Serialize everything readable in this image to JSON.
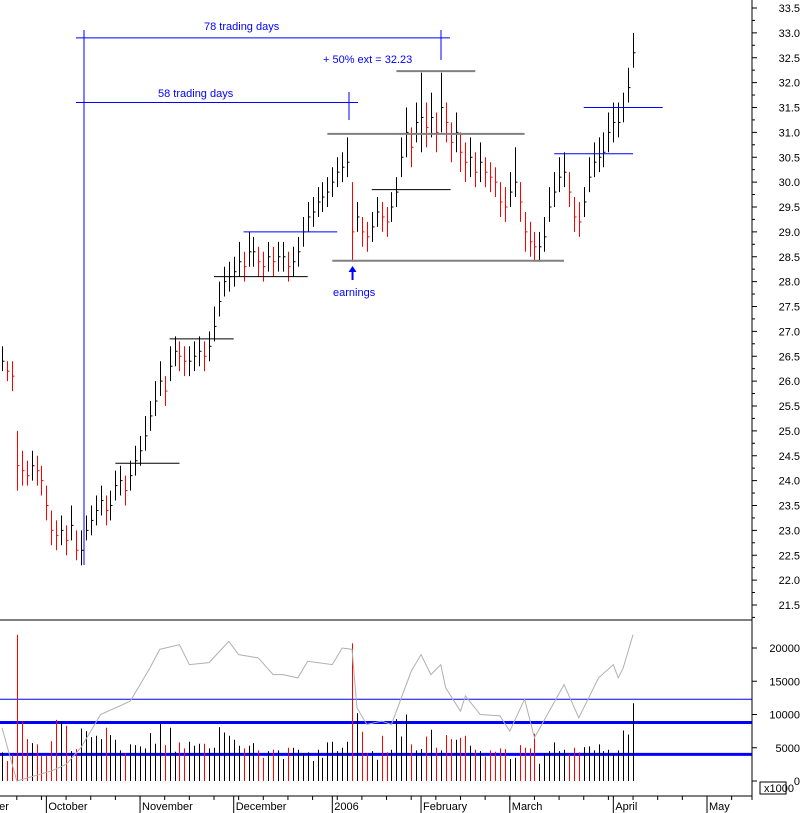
{
  "chart_data": {
    "type": "ohlc-bar",
    "price_axis": {
      "min": 21.5,
      "max": 33.5,
      "step": 0.5
    },
    "volume_axis": {
      "min": 0,
      "max": 20000,
      "step": 5000,
      "unit_label": "x1000"
    },
    "month_labels": [
      {
        "label": "er",
        "bar": -1
      },
      {
        "label": "October",
        "bar": 9
      },
      {
        "label": "November",
        "bar": 28
      },
      {
        "label": "December",
        "bar": 47
      },
      {
        "label": "2006",
        "bar": 67
      },
      {
        "label": "February",
        "bar": 85
      },
      {
        "label": "March",
        "bar": 103
      },
      {
        "label": "April",
        "bar": 124
      },
      {
        "label": "May",
        "bar": 143
      }
    ],
    "bars": [
      [
        26.7,
        26.2,
        26.4
      ],
      [
        26.4,
        26.0,
        26.2
      ],
      [
        26.4,
        25.8,
        26.1
      ],
      [
        25.0,
        23.8,
        24.3
      ],
      [
        24.6,
        23.9,
        24.2
      ],
      [
        24.4,
        23.9,
        24.1
      ],
      [
        24.6,
        24.0,
        24.3
      ],
      [
        24.5,
        23.9,
        24.2
      ],
      [
        24.3,
        23.7,
        24.0
      ],
      [
        23.9,
        23.2,
        23.5
      ],
      [
        23.4,
        22.7,
        23.0
      ],
      [
        23.2,
        22.6,
        22.9
      ],
      [
        23.3,
        22.7,
        23.0
      ],
      [
        23.1,
        22.5,
        22.8
      ],
      [
        23.5,
        22.8,
        23.1
      ],
      [
        23.0,
        22.4,
        22.6
      ],
      [
        23.0,
        22.3,
        22.6
      ],
      [
        23.3,
        22.8,
        23.0
      ],
      [
        23.5,
        22.9,
        23.2
      ],
      [
        23.7,
        23.1,
        23.4
      ],
      [
        23.9,
        23.3,
        23.6
      ],
      [
        23.7,
        23.1,
        23.4
      ],
      [
        23.8,
        23.2,
        23.5
      ],
      [
        24.2,
        23.6,
        23.9
      ],
      [
        24.3,
        23.7,
        24.0
      ],
      [
        24.1,
        23.5,
        23.8
      ],
      [
        24.4,
        23.8,
        24.1
      ],
      [
        24.7,
        24.1,
        24.4
      ],
      [
        24.9,
        24.3,
        24.6
      ],
      [
        25.3,
        24.6,
        24.9
      ],
      [
        25.6,
        25.0,
        25.3
      ],
      [
        26.0,
        25.3,
        25.6
      ],
      [
        26.4,
        25.7,
        26.0
      ],
      [
        26.1,
        25.5,
        25.8
      ],
      [
        26.7,
        26.0,
        26.3
      ],
      [
        26.9,
        26.3,
        26.6
      ],
      [
        26.8,
        26.2,
        26.5
      ],
      [
        26.7,
        26.1,
        26.4
      ],
      [
        26.7,
        26.1,
        26.4
      ],
      [
        26.8,
        26.2,
        26.5
      ],
      [
        26.9,
        26.3,
        26.6
      ],
      [
        26.8,
        26.2,
        26.5
      ],
      [
        27.0,
        26.4,
        26.7
      ],
      [
        27.5,
        26.8,
        27.1
      ],
      [
        28.0,
        27.3,
        27.6
      ],
      [
        28.3,
        27.7,
        28.0
      ],
      [
        28.4,
        27.8,
        28.1
      ],
      [
        28.5,
        27.9,
        28.2
      ],
      [
        28.8,
        28.1,
        28.4
      ],
      [
        28.6,
        28.0,
        28.3
      ],
      [
        29.0,
        28.3,
        28.6
      ],
      [
        28.9,
        28.3,
        28.6
      ],
      [
        28.7,
        28.1,
        28.4
      ],
      [
        28.6,
        28.0,
        28.3
      ],
      [
        28.8,
        28.2,
        28.5
      ],
      [
        28.7,
        28.1,
        28.4
      ],
      [
        28.8,
        28.2,
        28.5
      ],
      [
        28.8,
        28.2,
        28.5
      ],
      [
        28.6,
        28.0,
        28.3
      ],
      [
        28.7,
        28.1,
        28.4
      ],
      [
        28.9,
        28.3,
        28.6
      ],
      [
        29.3,
        28.7,
        29.0
      ],
      [
        29.6,
        29.0,
        29.3
      ],
      [
        29.7,
        29.1,
        29.4
      ],
      [
        29.9,
        29.3,
        29.6
      ],
      [
        30.0,
        29.4,
        29.7
      ],
      [
        30.1,
        29.5,
        29.8
      ],
      [
        30.3,
        29.7,
        30.0
      ],
      [
        30.5,
        29.9,
        30.2
      ],
      [
        30.6,
        30.0,
        30.3
      ],
      [
        30.9,
        30.1,
        30.4
      ],
      [
        30.0,
        28.4,
        29.0
      ],
      [
        29.6,
        29.0,
        29.3
      ],
      [
        29.3,
        28.7,
        29.0
      ],
      [
        29.2,
        28.6,
        28.9
      ],
      [
        29.4,
        28.8,
        29.1
      ],
      [
        29.7,
        29.1,
        29.4
      ],
      [
        29.6,
        29.0,
        29.3
      ],
      [
        29.5,
        28.9,
        29.2
      ],
      [
        29.8,
        29.2,
        29.5
      ],
      [
        30.1,
        29.5,
        29.8
      ],
      [
        30.9,
        30.1,
        30.5
      ],
      [
        31.5,
        30.5,
        31.0
      ],
      [
        31.1,
        30.3,
        30.7
      ],
      [
        31.6,
        30.8,
        31.2
      ],
      [
        32.2,
        30.6,
        31.3
      ],
      [
        31.6,
        30.7,
        31.1
      ],
      [
        31.8,
        30.9,
        31.3
      ],
      [
        31.4,
        30.6,
        31.0
      ],
      [
        32.2,
        31.0,
        31.5
      ],
      [
        31.6,
        30.8,
        31.2
      ],
      [
        31.2,
        30.4,
        30.8
      ],
      [
        31.4,
        30.6,
        31.0
      ],
      [
        31.0,
        30.2,
        30.6
      ],
      [
        30.8,
        30.0,
        30.4
      ],
      [
        30.9,
        30.1,
        30.5
      ],
      [
        30.6,
        29.9,
        30.2
      ],
      [
        30.8,
        30.0,
        30.4
      ],
      [
        30.5,
        29.9,
        30.2
      ],
      [
        30.4,
        29.8,
        30.1
      ],
      [
        30.3,
        29.7,
        30.0
      ],
      [
        30.0,
        29.3,
        29.6
      ],
      [
        29.9,
        29.2,
        29.5
      ],
      [
        30.2,
        29.5,
        29.8
      ],
      [
        30.7,
        29.7,
        30.0
      ],
      [
        30.0,
        29.2,
        29.6
      ],
      [
        29.4,
        28.6,
        29.0
      ],
      [
        29.2,
        28.5,
        28.8
      ],
      [
        29.0,
        28.4,
        28.7
      ],
      [
        29.0,
        28.4,
        28.7
      ],
      [
        29.3,
        28.6,
        28.9
      ],
      [
        29.9,
        29.2,
        29.5
      ],
      [
        30.2,
        29.5,
        29.8
      ],
      [
        30.5,
        29.8,
        30.1
      ],
      [
        30.6,
        29.9,
        30.2
      ],
      [
        30.2,
        29.5,
        29.8
      ],
      [
        29.7,
        29.0,
        29.3
      ],
      [
        29.6,
        28.9,
        29.2
      ],
      [
        29.9,
        29.3,
        29.6
      ],
      [
        30.5,
        29.8,
        30.1
      ],
      [
        30.8,
        30.1,
        30.4
      ],
      [
        30.9,
        30.2,
        30.5
      ],
      [
        31.0,
        30.3,
        30.6
      ],
      [
        31.4,
        30.6,
        31.0
      ],
      [
        31.6,
        30.8,
        31.2
      ],
      [
        31.6,
        30.9,
        31.2
      ],
      [
        31.8,
        31.2,
        31.5
      ],
      [
        32.3,
        31.6,
        31.9
      ],
      [
        33.0,
        32.3,
        32.6
      ]
    ],
    "volume": [
      4300,
      3000,
      4000,
      22000,
      9000,
      6300,
      5700,
      5500,
      3800,
      3900,
      6000,
      9200,
      9000,
      8300,
      4500,
      4800,
      7900,
      7500,
      6600,
      6800,
      6300,
      8000,
      6900,
      6200,
      4600,
      4200,
      5500,
      5400,
      5200,
      4900,
      7200,
      5600,
      8600,
      5400,
      8000,
      4400,
      5800,
      4900,
      5900,
      5300,
      5600,
      5600,
      4900,
      5000,
      8100,
      7300,
      6800,
      6200,
      5300,
      4900,
      5300,
      5700,
      4600,
      3500,
      4500,
      4700,
      4600,
      3300,
      5000,
      5000,
      4700,
      4200,
      4300,
      3000,
      4700,
      3500,
      5800,
      5900,
      4500,
      5000,
      5900,
      20700,
      10200,
      7400,
      4200,
      4500,
      3200,
      6800,
      4300,
      4700,
      9300,
      6700,
      10000,
      5500,
      4600,
      4800,
      6700,
      7700,
      5000,
      4600,
      6900,
      6300,
      6200,
      6500,
      6800,
      5300,
      4700,
      4500,
      3700,
      4600,
      4400,
      4900,
      4800,
      3300,
      3500,
      5400,
      5000,
      4900,
      7100,
      2600,
      4200,
      4500,
      5800,
      4500,
      4700,
      4000,
      5000,
      4300,
      5100,
      5200,
      4600,
      5500,
      4500,
      4700,
      4000,
      4600,
      7600,
      7000,
      11700
    ],
    "indicator_line": [
      [
        0,
        8000
      ],
      [
        3,
        0
      ],
      [
        10,
        1500
      ],
      [
        13,
        2500
      ],
      [
        16,
        5000
      ],
      [
        20,
        10000
      ],
      [
        26,
        12000
      ],
      [
        30,
        17000
      ],
      [
        32,
        19800
      ],
      [
        36,
        20500
      ],
      [
        38,
        17500
      ],
      [
        42,
        17800
      ],
      [
        46,
        21000
      ],
      [
        48,
        19000
      ],
      [
        52,
        18500
      ],
      [
        55,
        16000
      ],
      [
        57,
        16000
      ],
      [
        60,
        15500
      ],
      [
        62,
        18000
      ],
      [
        67,
        17500
      ],
      [
        69,
        20000
      ],
      [
        71,
        19800
      ],
      [
        72,
        11000
      ],
      [
        74,
        8500
      ],
      [
        77,
        9000
      ],
      [
        79,
        8500
      ],
      [
        83,
        16500
      ],
      [
        85,
        19000
      ],
      [
        87,
        16000
      ],
      [
        89,
        17500
      ],
      [
        90,
        14000
      ],
      [
        93,
        10500
      ],
      [
        94,
        12800
      ],
      [
        97,
        10000
      ],
      [
        101,
        9800
      ],
      [
        103,
        7500
      ],
      [
        106,
        12300
      ],
      [
        108,
        6500
      ],
      [
        114,
        14500
      ],
      [
        117,
        9500
      ],
      [
        121,
        15500
      ],
      [
        124,
        17500
      ],
      [
        125,
        15500
      ],
      [
        126,
        17000
      ],
      [
        128,
        22000
      ]
    ],
    "volume_levels": {
      "thin": [
        12300
      ],
      "thick": [
        8800,
        4000
      ]
    },
    "annotations": {
      "measure_78": {
        "label": "78 trading days",
        "price": 33.0
      },
      "measure_58": {
        "label": "58 trading days",
        "price": 31.6
      },
      "extension": {
        "label": "+ 50% ext = 32.23",
        "price": 32.23
      },
      "earnings": {
        "label": "earnings",
        "bar": 71
      },
      "levels": [
        {
          "price": 32.23,
          "from": 80,
          "to": 96,
          "color": "#808080"
        },
        {
          "price": 30.97,
          "from": 66,
          "to": 106,
          "color": "#808080"
        },
        {
          "price": 28.42,
          "from": 67,
          "to": 114,
          "color": "#808080"
        },
        {
          "price": 24.35,
          "from": 23,
          "to": 36,
          "color": "#000000"
        },
        {
          "price": 26.85,
          "from": 34,
          "to": 47,
          "color": "#000000"
        },
        {
          "price": 28.1,
          "from": 43,
          "to": 62,
          "color": "#000000"
        },
        {
          "price": 29.85,
          "from": 75,
          "to": 91,
          "color": "#000000"
        },
        {
          "price": 29.0,
          "from": 49,
          "to": 68,
          "color": "#0000ff"
        },
        {
          "price": 30.57,
          "from": 112,
          "to": 128,
          "color": "#0000ff"
        },
        {
          "price": 31.5,
          "from": 118,
          "to": 134,
          "color": "#0000ff"
        }
      ]
    },
    "colors": {
      "up": "#000000",
      "down": "#ff0000",
      "annotation": "#0000ff",
      "indicator": "#b0b0b0"
    }
  }
}
